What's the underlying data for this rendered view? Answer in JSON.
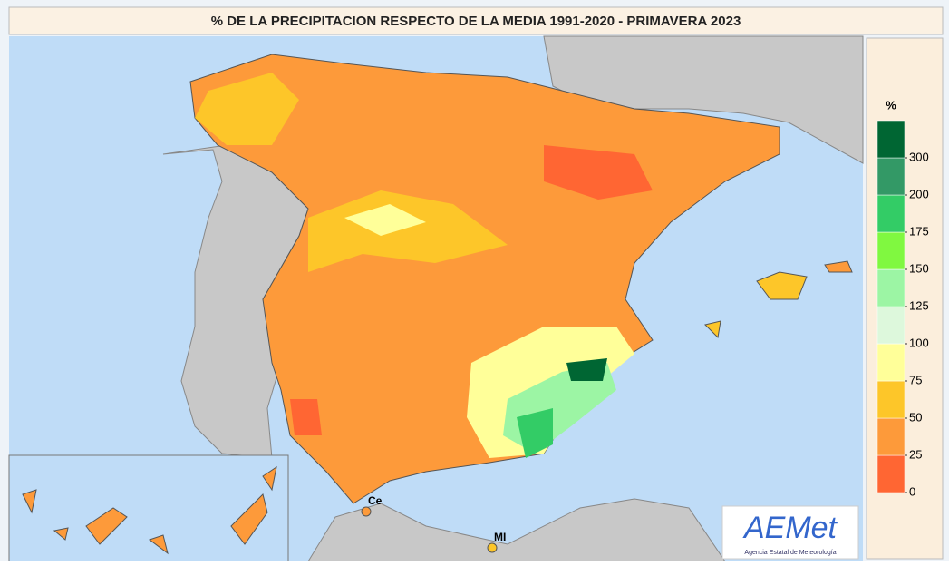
{
  "title": "% DE LA PRECIPITACION RESPECTO DE LA MEDIA  1991-2020  - PRIMAVERA 2023",
  "legend": {
    "title": "%",
    "ticks": [
      0,
      25,
      50,
      75,
      100,
      125,
      150,
      175,
      200,
      300
    ],
    "colors": [
      "#ff6633",
      "#fd9a3a",
      "#fdc629",
      "#ffff99",
      "#ddf8dc",
      "#9cf5a4",
      "#80f840",
      "#33cc66",
      "#339966",
      "#006633"
    ]
  },
  "places": [
    "Ce",
    "MI"
  ],
  "logo": {
    "name": "AEMet",
    "subtitle": "Agencia Estatal de Meteorología"
  }
}
